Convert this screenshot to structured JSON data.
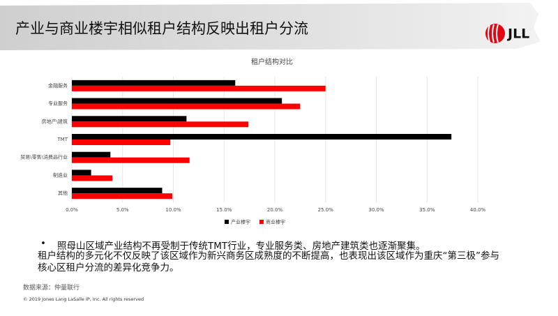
{
  "header": {
    "title": "产业与商业楼宇相似租户结构反映出租户分流",
    "logo": "JLL"
  },
  "chart_data": {
    "type": "bar",
    "orientation": "horizontal",
    "title": "租户结构对比",
    "categories": [
      "金融服务",
      "专业服务",
      "房地产\\建筑",
      "TMT",
      "贸易\\零售\\消费品行业",
      "制造业",
      "其他"
    ],
    "series": [
      {
        "name": "产业楼宇",
        "color": "#000000",
        "values": [
          16.1,
          20.7,
          11.3,
          37.4,
          3.8,
          1.9,
          8.9
        ]
      },
      {
        "name": "商业楼宇",
        "color": "#ff0000",
        "values": [
          25.0,
          22.5,
          17.4,
          9.7,
          11.6,
          4.0,
          9.9
        ]
      }
    ],
    "xlim": [
      0,
      40
    ],
    "xticks": [
      {
        "value": 0,
        "label": "0.0%"
      },
      {
        "value": 5,
        "label": "5.0%"
      },
      {
        "value": 10,
        "label": "10.0%"
      },
      {
        "value": 15,
        "label": "15.0%"
      },
      {
        "value": 20,
        "label": "20.0%"
      },
      {
        "value": 25,
        "label": "25.0%"
      },
      {
        "value": 30,
        "label": "30.0%"
      },
      {
        "value": 35,
        "label": "35.0%"
      },
      {
        "value": 40,
        "label": "40.0%"
      }
    ],
    "grid": true,
    "legend": "bottom"
  },
  "body": {
    "bullet": "照母山区域产业结构不再受制于传统TMT行业，专业服务类、房地产建筑类也逐渐聚集。",
    "paragraph": "租户结构的多元化不仅反映了该区域作为新兴商务区成熟度的不断提高，也表现出该区域作为重庆“第三极”参与核心区租户分流的差异化竞争力。"
  },
  "footer": {
    "source": "数据来源：仲量联行",
    "copyright": "© 2019 Jones Lang LaSalle IP, Inc. All rights reserved"
  }
}
